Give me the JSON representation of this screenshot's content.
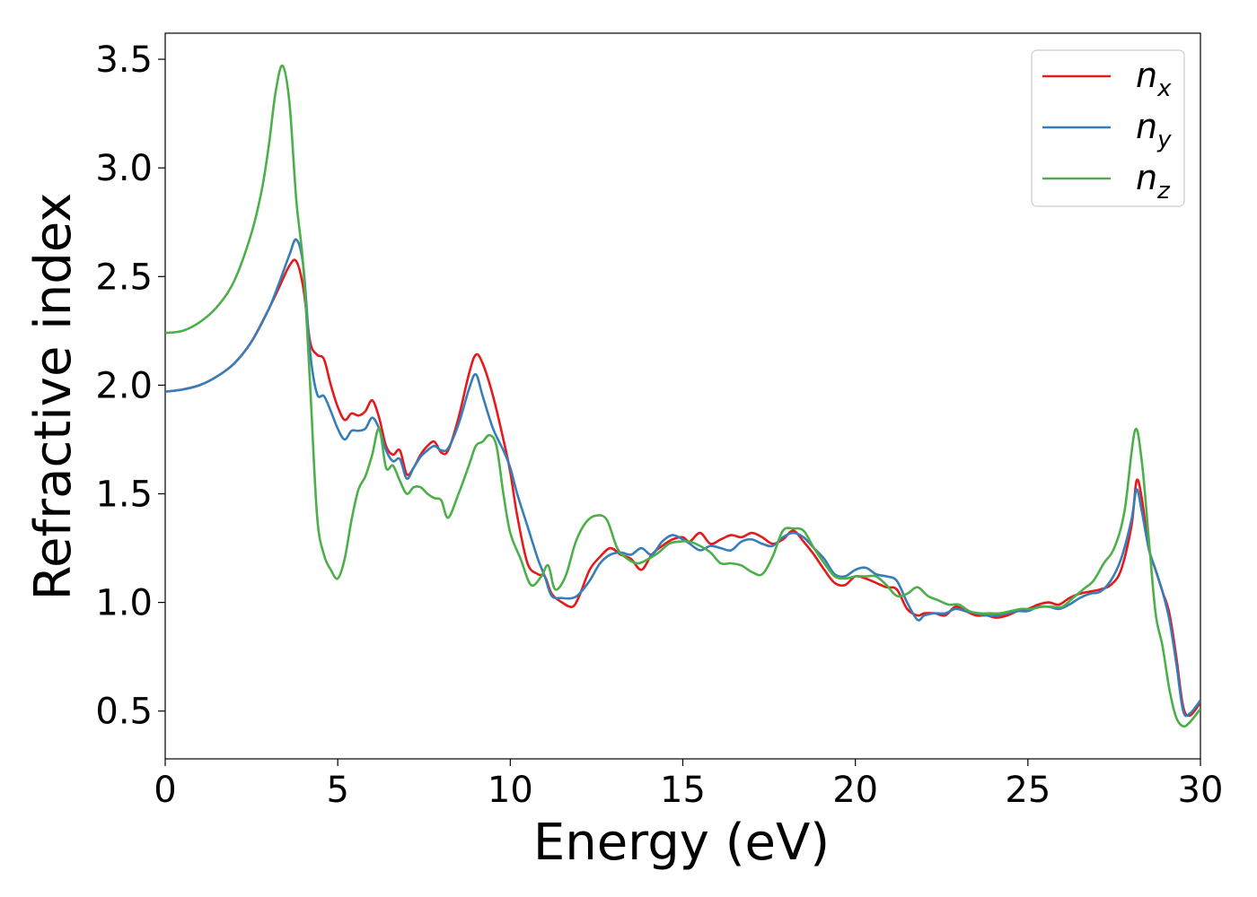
{
  "chart_data": {
    "type": "line",
    "xlabel": "Energy (eV)",
    "ylabel": "Refractive index",
    "xlim": [
      0,
      30
    ],
    "ylim": [
      0.28,
      3.62
    ],
    "xticks": [
      0,
      5,
      10,
      15,
      20,
      25,
      30
    ],
    "xtick_labels": [
      "0",
      "5",
      "10",
      "15",
      "20",
      "25",
      "30"
    ],
    "yticks": [
      0.5,
      1.0,
      1.5,
      2.0,
      2.5,
      3.0,
      3.5
    ],
    "ytick_labels": [
      "0.5",
      "1.0",
      "1.5",
      "2.0",
      "2.5",
      "3.0",
      "3.5"
    ],
    "grid": false,
    "legend_position": "top-right",
    "series": [
      {
        "name": "n_x",
        "label_main": "n",
        "label_sub": "x",
        "color": "#e41a1c",
        "x": [
          0,
          0.5,
          1,
          1.5,
          2,
          2.5,
          3,
          3.3,
          3.6,
          3.8,
          4.0,
          4.2,
          4.4,
          4.6,
          4.8,
          5.0,
          5.2,
          5.4,
          5.6,
          5.8,
          6.0,
          6.2,
          6.4,
          6.6,
          6.8,
          7.0,
          7.2,
          7.4,
          7.6,
          7.8,
          8.0,
          8.2,
          8.5,
          8.8,
          9.0,
          9.2,
          9.5,
          9.8,
          10.0,
          10.2,
          10.5,
          10.8,
          11.0,
          11.2,
          11.5,
          11.8,
          12.0,
          12.3,
          12.6,
          12.9,
          13.2,
          13.5,
          13.8,
          14.1,
          14.4,
          14.7,
          15.0,
          15.2,
          15.5,
          15.8,
          16.1,
          16.4,
          16.7,
          17.0,
          17.3,
          17.6,
          17.9,
          18.2,
          18.5,
          18.8,
          19.1,
          19.4,
          19.7,
          20.0,
          20.3,
          20.6,
          20.9,
          21.2,
          21.5,
          21.8,
          22.0,
          22.3,
          22.6,
          22.9,
          23.2,
          23.5,
          23.8,
          24.1,
          24.4,
          24.7,
          25.0,
          25.3,
          25.6,
          25.9,
          26.2,
          26.5,
          26.8,
          27.1,
          27.4,
          27.7,
          28.0,
          28.15,
          28.3,
          28.5,
          28.7,
          28.9,
          29.1,
          29.3,
          29.5,
          29.7,
          30.0
        ],
        "y": [
          1.97,
          1.98,
          2.0,
          2.04,
          2.1,
          2.2,
          2.35,
          2.45,
          2.55,
          2.57,
          2.45,
          2.2,
          2.14,
          2.12,
          2.0,
          1.9,
          1.84,
          1.87,
          1.86,
          1.88,
          1.93,
          1.85,
          1.72,
          1.68,
          1.7,
          1.59,
          1.62,
          1.68,
          1.72,
          1.74,
          1.69,
          1.7,
          1.85,
          2.05,
          2.14,
          2.1,
          1.95,
          1.75,
          1.6,
          1.4,
          1.18,
          1.13,
          1.12,
          1.04,
          1.0,
          0.98,
          1.03,
          1.15,
          1.21,
          1.25,
          1.22,
          1.2,
          1.15,
          1.22,
          1.26,
          1.29,
          1.3,
          1.28,
          1.32,
          1.27,
          1.29,
          1.31,
          1.3,
          1.32,
          1.3,
          1.27,
          1.29,
          1.33,
          1.28,
          1.22,
          1.15,
          1.09,
          1.08,
          1.12,
          1.11,
          1.09,
          1.07,
          1.06,
          0.97,
          0.94,
          0.95,
          0.95,
          0.94,
          0.98,
          0.96,
          0.94,
          0.94,
          0.93,
          0.94,
          0.96,
          0.97,
          0.99,
          1.0,
          0.99,
          1.02,
          1.04,
          1.05,
          1.06,
          1.08,
          1.15,
          1.35,
          1.56,
          1.48,
          1.25,
          1.15,
          1.05,
          0.95,
          0.75,
          0.52,
          0.48,
          0.54
        ]
      },
      {
        "name": "n_y",
        "label_main": "n",
        "label_sub": "y",
        "color": "#377eb8",
        "x": [
          0,
          0.5,
          1,
          1.5,
          2,
          2.5,
          3,
          3.3,
          3.6,
          3.8,
          4.0,
          4.2,
          4.4,
          4.6,
          4.8,
          5.0,
          5.2,
          5.4,
          5.6,
          5.8,
          6.0,
          6.2,
          6.4,
          6.6,
          6.8,
          7.0,
          7.2,
          7.4,
          7.6,
          7.8,
          8.0,
          8.2,
          8.5,
          8.8,
          9.0,
          9.2,
          9.5,
          9.8,
          10.0,
          10.2,
          10.5,
          10.8,
          11.0,
          11.2,
          11.5,
          11.8,
          12.0,
          12.3,
          12.6,
          12.9,
          13.2,
          13.5,
          13.8,
          14.1,
          14.4,
          14.7,
          15.0,
          15.2,
          15.5,
          15.8,
          16.1,
          16.4,
          16.7,
          17.0,
          17.3,
          17.6,
          17.9,
          18.2,
          18.5,
          18.8,
          19.1,
          19.4,
          19.7,
          20.0,
          20.3,
          20.6,
          20.9,
          21.2,
          21.5,
          21.8,
          22.0,
          22.3,
          22.6,
          22.9,
          23.2,
          23.5,
          23.8,
          24.1,
          24.4,
          24.7,
          25.0,
          25.3,
          25.6,
          25.9,
          26.2,
          26.5,
          26.8,
          27.1,
          27.4,
          27.7,
          28.0,
          28.15,
          28.3,
          28.5,
          28.7,
          28.9,
          29.1,
          29.3,
          29.5,
          29.7,
          30.0
        ],
        "y": [
          1.97,
          1.98,
          2.0,
          2.04,
          2.1,
          2.2,
          2.35,
          2.47,
          2.6,
          2.67,
          2.55,
          2.15,
          1.96,
          1.95,
          1.88,
          1.8,
          1.75,
          1.79,
          1.79,
          1.8,
          1.85,
          1.8,
          1.7,
          1.65,
          1.66,
          1.57,
          1.62,
          1.67,
          1.7,
          1.72,
          1.7,
          1.71,
          1.82,
          1.98,
          2.05,
          1.95,
          1.8,
          1.7,
          1.62,
          1.5,
          1.35,
          1.2,
          1.12,
          1.03,
          1.02,
          1.02,
          1.04,
          1.1,
          1.18,
          1.22,
          1.23,
          1.22,
          1.25,
          1.22,
          1.28,
          1.31,
          1.29,
          1.27,
          1.24,
          1.26,
          1.25,
          1.24,
          1.28,
          1.29,
          1.27,
          1.26,
          1.3,
          1.32,
          1.3,
          1.25,
          1.2,
          1.13,
          1.12,
          1.15,
          1.16,
          1.13,
          1.12,
          1.1,
          1.0,
          0.92,
          0.94,
          0.95,
          0.95,
          0.97,
          0.96,
          0.95,
          0.94,
          0.94,
          0.95,
          0.96,
          0.96,
          0.98,
          0.98,
          0.97,
          0.99,
          1.02,
          1.04,
          1.05,
          1.1,
          1.2,
          1.38,
          1.52,
          1.42,
          1.25,
          1.15,
          1.05,
          0.92,
          0.72,
          0.5,
          0.49,
          0.55
        ]
      },
      {
        "name": "n_z",
        "label_main": "n",
        "label_sub": "z",
        "color": "#4daf4a",
        "x": [
          0,
          0.5,
          1,
          1.5,
          2,
          2.5,
          2.8,
          3.0,
          3.2,
          3.4,
          3.6,
          3.8,
          4.0,
          4.2,
          4.4,
          4.6,
          4.8,
          5.0,
          5.2,
          5.4,
          5.6,
          5.8,
          6.0,
          6.2,
          6.4,
          6.6,
          6.8,
          7.0,
          7.2,
          7.4,
          7.6,
          7.8,
          8.0,
          8.2,
          8.5,
          8.8,
          9.0,
          9.2,
          9.4,
          9.6,
          9.8,
          10.0,
          10.3,
          10.6,
          10.9,
          11.1,
          11.3,
          11.6,
          11.9,
          12.2,
          12.5,
          12.8,
          13.1,
          13.4,
          13.7,
          14.0,
          14.3,
          14.6,
          14.9,
          15.2,
          15.5,
          15.8,
          16.1,
          16.4,
          16.7,
          17.0,
          17.3,
          17.6,
          17.9,
          18.2,
          18.5,
          18.8,
          19.1,
          19.4,
          19.7,
          20.0,
          20.3,
          20.6,
          20.9,
          21.2,
          21.5,
          21.8,
          22.1,
          22.4,
          22.7,
          23.0,
          23.3,
          23.6,
          23.9,
          24.2,
          24.5,
          24.8,
          25.1,
          25.4,
          25.7,
          26.0,
          26.3,
          26.6,
          26.9,
          27.2,
          27.5,
          27.8,
          28.1,
          28.3,
          28.5,
          28.7,
          28.9,
          29.1,
          29.3,
          29.5,
          29.7,
          30.0
        ],
        "y": [
          2.24,
          2.25,
          2.29,
          2.36,
          2.48,
          2.7,
          2.9,
          3.1,
          3.35,
          3.47,
          3.3,
          2.85,
          2.55,
          2.0,
          1.4,
          1.22,
          1.15,
          1.11,
          1.2,
          1.38,
          1.52,
          1.58,
          1.68,
          1.8,
          1.62,
          1.63,
          1.56,
          1.5,
          1.53,
          1.53,
          1.5,
          1.48,
          1.47,
          1.39,
          1.5,
          1.63,
          1.72,
          1.74,
          1.77,
          1.72,
          1.5,
          1.32,
          1.2,
          1.08,
          1.12,
          1.17,
          1.06,
          1.12,
          1.28,
          1.37,
          1.4,
          1.38,
          1.25,
          1.2,
          1.18,
          1.2,
          1.23,
          1.27,
          1.28,
          1.28,
          1.26,
          1.23,
          1.18,
          1.18,
          1.17,
          1.14,
          1.13,
          1.21,
          1.33,
          1.34,
          1.33,
          1.25,
          1.18,
          1.12,
          1.11,
          1.12,
          1.12,
          1.12,
          1.08,
          1.03,
          1.04,
          1.07,
          1.03,
          1.01,
          0.99,
          0.99,
          0.96,
          0.95,
          0.95,
          0.95,
          0.96,
          0.97,
          0.97,
          0.98,
          0.98,
          0.98,
          1.02,
          1.06,
          1.1,
          1.18,
          1.25,
          1.42,
          1.79,
          1.65,
          1.3,
          0.95,
          0.8,
          0.6,
          0.47,
          0.43,
          0.45,
          0.51
        ]
      }
    ]
  }
}
